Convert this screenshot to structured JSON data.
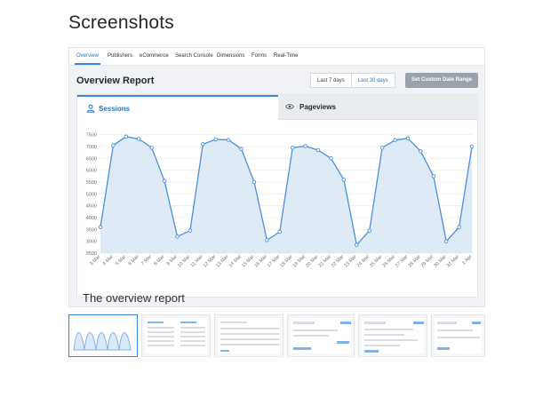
{
  "page": {
    "heading": "Screenshots",
    "caption": "The overview report"
  },
  "nav": {
    "tabs": [
      "Overview",
      "Publishers",
      "eCommerce",
      "Search Console",
      "Dimensions",
      "Forms",
      "Real-Time"
    ],
    "active": "Overview"
  },
  "report": {
    "title": "Overview Report",
    "range_buttons": [
      "Last 7 days",
      "Last 30 days"
    ],
    "active_range": "Last 30 days",
    "custom_button": "Set Custom Date Range",
    "chart_tabs": [
      {
        "label": "Sessions",
        "icon": "user-icon",
        "active": true
      },
      {
        "label": "Pageviews",
        "icon": "eye-icon",
        "active": false
      }
    ]
  },
  "chart_data": {
    "type": "area",
    "title": "",
    "xlabel": "",
    "ylabel": "",
    "ylim": [
      2500,
      7750
    ],
    "yticks": [
      2500,
      3000,
      3500,
      4000,
      4500,
      5000,
      5500,
      6000,
      6500,
      7000,
      7500
    ],
    "grid": true,
    "x": [
      "3 Mar",
      "4 Mar",
      "5 Mar",
      "6 Mar",
      "7 Mar",
      "8 Mar",
      "9 Mar",
      "10 Mar",
      "11 Mar",
      "12 Mar",
      "13 Mar",
      "14 Mar",
      "15 Mar",
      "16 Mar",
      "17 Mar",
      "18 Mar",
      "19 Mar",
      "20 Mar",
      "21 Mar",
      "22 Mar",
      "23 Mar",
      "24 Mar",
      "25 Mar",
      "26 Mar",
      "27 Mar",
      "28 Mar",
      "29 Mar",
      "30 Mar",
      "31 Mar",
      "1 Apr"
    ],
    "series": [
      {
        "values": [
          3600,
          7050,
          7420,
          7320,
          6950,
          5550,
          3200,
          3450,
          7100,
          7300,
          7280,
          6900,
          5500,
          3050,
          3400,
          6950,
          7020,
          6850,
          6500,
          5600,
          2850,
          3450,
          6950,
          7270,
          7350,
          6800,
          5750,
          3000,
          3600,
          7000
        ]
      }
    ],
    "colors": {
      "line": "#4a90d9",
      "fill": "#dfeaf7",
      "marker_fill": "#ffffff",
      "grid": "#e3e6ea"
    }
  }
}
